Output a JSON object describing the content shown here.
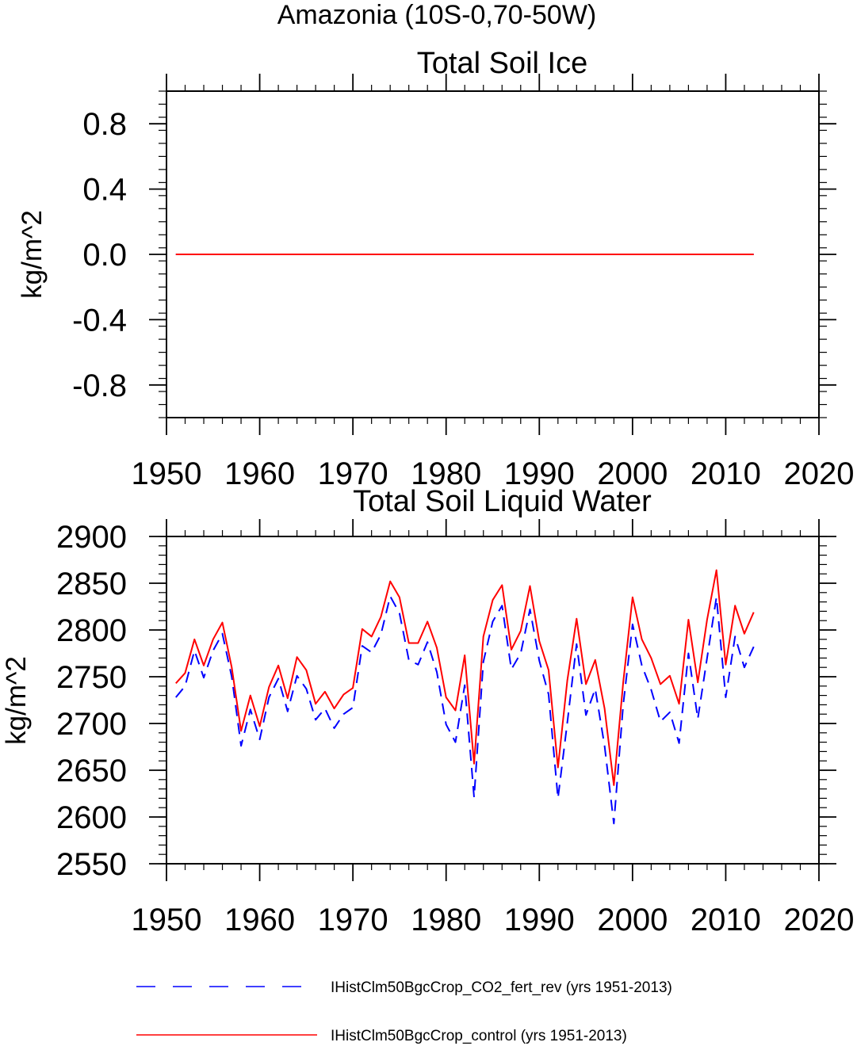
{
  "figure_title": "Amazonia (10S-0,70-50W)",
  "colors": {
    "blue": "#0000ff",
    "red": "#ff0000",
    "axis": "#000000"
  },
  "legend": [
    {
      "label": "IHistClm50BgcCrop_CO2_fert_rev (yrs 1951-2013)",
      "color": "#0000ff",
      "style": "dashed"
    },
    {
      "label": "IHistClm50BgcCrop_control (yrs 1951-2013)",
      "color": "#ff0000",
      "style": "solid"
    }
  ],
  "chart_data": [
    {
      "type": "line",
      "title": "Total Soil Ice",
      "xlabel": "",
      "ylabel": "kg/m^2",
      "xlim": [
        1950,
        2020
      ],
      "ylim": [
        -1.0,
        1.0
      ],
      "xticks": [
        1950,
        1960,
        1970,
        1980,
        1990,
        2000,
        2010,
        2020
      ],
      "xtick_labels": [
        "1950",
        "1960",
        "1970",
        "1980",
        "1990",
        "2000",
        "2010",
        "2020"
      ],
      "yticks": [
        -0.8,
        -0.4,
        0.0,
        0.4,
        0.8
      ],
      "ytick_labels": [
        "-0.8",
        "-0.4",
        "0.0",
        "0.4",
        "0.8"
      ],
      "grid": false,
      "x": [
        1951,
        2013
      ],
      "series": [
        {
          "name": "IHistClm50BgcCrop_CO2_fert_rev (yrs 1951-2013)",
          "color": "#0000ff",
          "style": "dashed",
          "values": [
            0,
            0
          ]
        },
        {
          "name": "IHistClm50BgcCrop_control (yrs 1951-2013)",
          "color": "#ff0000",
          "style": "solid",
          "values": [
            0,
            0
          ]
        }
      ]
    },
    {
      "type": "line",
      "title": "Total Soil Liquid Water",
      "xlabel": "",
      "ylabel": "kg/m^2",
      "xlim": [
        1950,
        2020
      ],
      "ylim": [
        2550,
        2900
      ],
      "xticks": [
        1950,
        1960,
        1970,
        1980,
        1990,
        2000,
        2010,
        2020
      ],
      "xtick_labels": [
        "1950",
        "1960",
        "1970",
        "1980",
        "1990",
        "2000",
        "2010",
        "2020"
      ],
      "yticks": [
        2550,
        2600,
        2650,
        2700,
        2750,
        2800,
        2850,
        2900
      ],
      "ytick_labels": [
        "2550",
        "2600",
        "2650",
        "2700",
        "2750",
        "2800",
        "2850",
        "2900"
      ],
      "grid": false,
      "x": [
        1951,
        1952,
        1953,
        1954,
        1955,
        1956,
        1957,
        1958,
        1959,
        1960,
        1961,
        1962,
        1963,
        1964,
        1965,
        1966,
        1967,
        1968,
        1969,
        1970,
        1971,
        1972,
        1973,
        1974,
        1975,
        1976,
        1977,
        1978,
        1979,
        1980,
        1981,
        1982,
        1983,
        1984,
        1985,
        1986,
        1987,
        1988,
        1989,
        1990,
        1991,
        1992,
        1993,
        1994,
        1995,
        1996,
        1997,
        1998,
        1999,
        2000,
        2001,
        2002,
        2003,
        2004,
        2005,
        2006,
        2007,
        2008,
        2009,
        2010,
        2011,
        2012,
        2013
      ],
      "series": [
        {
          "name": "IHistClm50BgcCrop_CO2_fert_rev (yrs 1951-2013)",
          "color": "#0000ff",
          "style": "dashed",
          "values": [
            2728,
            2740,
            2778,
            2749,
            2778,
            2796,
            2750,
            2676,
            2715,
            2683,
            2728,
            2748,
            2713,
            2751,
            2737,
            2704,
            2716,
            2695,
            2710,
            2717,
            2783,
            2776,
            2795,
            2836,
            2818,
            2768,
            2763,
            2787,
            2755,
            2699,
            2680,
            2741,
            2621,
            2766,
            2809,
            2826,
            2758,
            2775,
            2822,
            2767,
            2731,
            2620,
            2701,
            2785,
            2709,
            2737,
            2676,
            2593,
            2720,
            2806,
            2762,
            2736,
            2702,
            2712,
            2679,
            2775,
            2705,
            2770,
            2835,
            2728,
            2793,
            2760,
            2782
          ]
        },
        {
          "name": "IHistClm50BgcCrop_control (yrs 1951-2013)",
          "color": "#ff0000",
          "style": "solid",
          "values": [
            2743,
            2754,
            2790,
            2762,
            2790,
            2808,
            2760,
            2692,
            2730,
            2697,
            2739,
            2762,
            2727,
            2771,
            2757,
            2721,
            2734,
            2716,
            2731,
            2738,
            2801,
            2793,
            2814,
            2852,
            2835,
            2786,
            2786,
            2809,
            2781,
            2728,
            2714,
            2773,
            2657,
            2793,
            2832,
            2848,
            2779,
            2799,
            2847,
            2788,
            2757,
            2653,
            2746,
            2812,
            2742,
            2768,
            2716,
            2634,
            2744,
            2835,
            2790,
            2770,
            2742,
            2751,
            2721,
            2811,
            2744,
            2811,
            2864,
            2763,
            2826,
            2796,
            2819
          ]
        }
      ]
    }
  ]
}
